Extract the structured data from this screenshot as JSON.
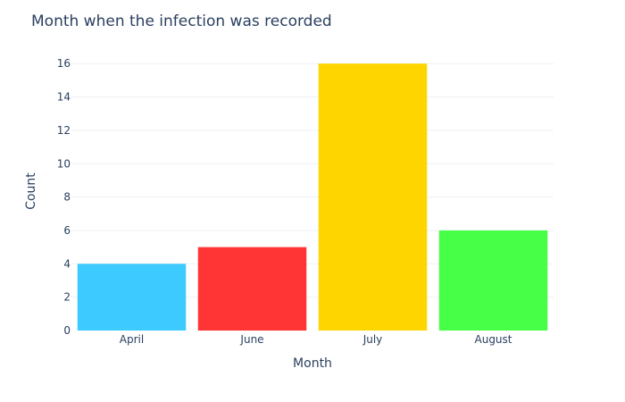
{
  "chart_data": {
    "type": "bar",
    "title": "Month when the infection was recorded",
    "xlabel": "Month",
    "ylabel": "Count",
    "categories": [
      "April",
      "June",
      "July",
      "August"
    ],
    "values": [
      4,
      5,
      16,
      6
    ],
    "colors": [
      "#3dcbff",
      "#ff3434",
      "#ffd500",
      "#47ff47"
    ],
    "ylim": [
      0,
      16.6
    ],
    "yticks": [
      "0",
      "2",
      "4",
      "6",
      "8",
      "10",
      "12",
      "14",
      "16"
    ],
    "grid": true,
    "legend": "none"
  }
}
